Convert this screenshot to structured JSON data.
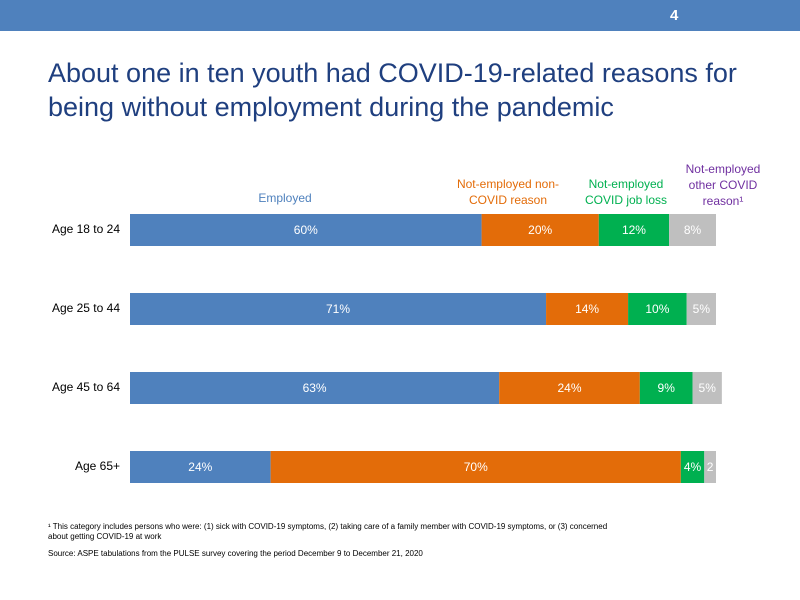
{
  "page_number": "4",
  "title": "About one in ten youth had COVID-19-related reasons for being without employment during the pandemic",
  "footnote": "¹ This category includes persons who were: (1) sick with COVID-19 symptoms, (2) taking care of a family member with COVID-19 symptoms, or (3) concerned about getting COVID-19 at work",
  "source": "Source: ASPE tabulations from the PULSE survey covering the period December 9 to December 21, 2020",
  "chart_data": {
    "type": "bar",
    "orientation": "horizontal",
    "stacked": true,
    "categories": [
      "Age 18 to 24",
      "Age 25 to 44",
      "Age 45 to 64",
      "Age 65+"
    ],
    "xlim": [
      0,
      100
    ],
    "series": [
      {
        "name": "Employed",
        "color": "#4f81bd",
        "values": [
          60,
          71,
          63,
          24
        ],
        "value_labels": [
          "60%",
          "71%",
          "63%",
          "24%"
        ]
      },
      {
        "name": "Not-employed non-COVID reason",
        "color": "#e36c09",
        "values": [
          20,
          14,
          24,
          70
        ],
        "value_labels": [
          "20%",
          "14%",
          "24%",
          "70%"
        ]
      },
      {
        "name": "Not-employed COVID job loss",
        "color": "#00b050",
        "values": [
          12,
          10,
          9,
          4
        ],
        "value_labels": [
          "12%",
          "10%",
          "9%",
          "4%"
        ]
      },
      {
        "name": "Not-employed other COVID reason¹",
        "color": "#bfbfbf",
        "legend_color": "#7030a0",
        "values": [
          8,
          5,
          5,
          2
        ],
        "value_labels": [
          "8%",
          "5%",
          "5%",
          "2"
        ]
      }
    ]
  }
}
